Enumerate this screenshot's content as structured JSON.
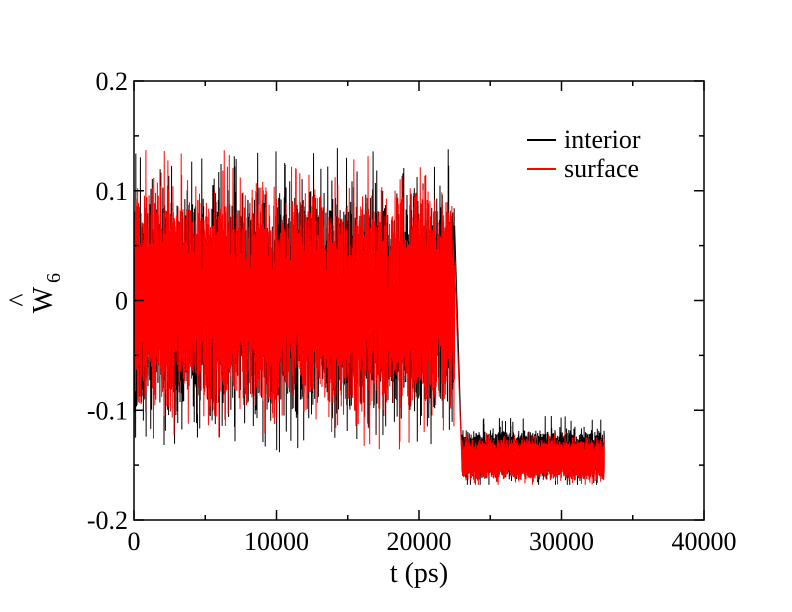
{
  "chart_data": {
    "type": "line",
    "title": "",
    "xlabel": "t (ps)",
    "ylabel": {
      "main": "W",
      "subscript": "6",
      "accent": "^"
    },
    "xlim": [
      0,
      40000
    ],
    "ylim": [
      -0.2,
      0.2
    ],
    "x_ticks": [
      0,
      10000,
      20000,
      30000,
      40000
    ],
    "x_tick_labels": [
      "0",
      "10000",
      "20000",
      "30000",
      "40000"
    ],
    "y_ticks": [
      -0.2,
      -0.1,
      0,
      0.1,
      0.2
    ],
    "y_tick_labels": [
      "-0.2",
      "-0.1",
      "0",
      "0.1",
      "0.2"
    ],
    "grid": false,
    "legend_position": "top-right",
    "series": [
      {
        "name": "interior",
        "color": "#000000",
        "segments": [
          {
            "x_start": 0,
            "x_end": 22500,
            "mean": 0.0,
            "spread": 0.085,
            "spike_max": 0.14,
            "spike_min": -0.15
          },
          {
            "x_start": 22500,
            "x_end": 23000,
            "transition_to": -0.14
          },
          {
            "x_start": 23000,
            "x_end": 33000,
            "mean": -0.14,
            "spread": 0.017,
            "spike_max": -0.105,
            "spike_min": -0.168
          }
        ]
      },
      {
        "name": "surface",
        "color": "#ff0000",
        "segments": [
          {
            "x_start": 0,
            "x_end": 22500,
            "mean": 0.0,
            "spread": 0.085,
            "spike_max": 0.14,
            "spike_min": -0.15
          },
          {
            "x_start": 22500,
            "x_end": 23000,
            "transition_to": -0.145
          },
          {
            "x_start": 23000,
            "x_end": 33000,
            "mean": -0.145,
            "spread": 0.015,
            "spike_max": -0.12,
            "spike_min": -0.168
          }
        ]
      }
    ]
  }
}
